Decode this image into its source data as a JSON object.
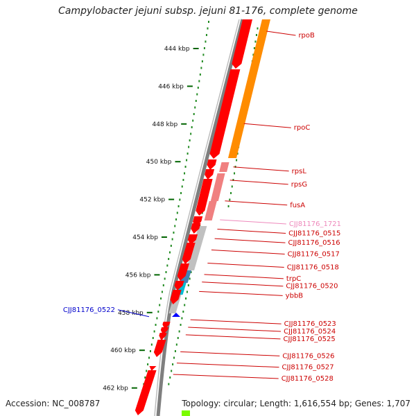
{
  "title": "Campylobacter jejuni subsp. jejuni 81-176, complete genome",
  "footer": {
    "accession": "Accession: NC_008787",
    "summary": "Topology: circular; Length: 1,616,554 bp; Genes: 1,707"
  },
  "colors": {
    "forward_gene": "#ff0000",
    "reverse_gene": "#ff0000",
    "orf_track": "#ff8c00",
    "rna_track": "#f08080",
    "other_gene": "#c0c0c0",
    "backbone": "#7f7f7f",
    "gc_dots": "#228b22",
    "tick": "#006400",
    "highlight_blue": "#4682b4",
    "highlight_cyan": "#00bcd4",
    "label_red": "#cc0000",
    "label_pink": "#ee88bb",
    "label_blue": "#0000cc",
    "lime": "#7cfc00"
  },
  "ticks": [
    {
      "label": "444 kbp",
      "kbp": 444
    },
    {
      "label": "446 kbp",
      "kbp": 446
    },
    {
      "label": "448 kbp",
      "kbp": 448
    },
    {
      "label": "450 kbp",
      "kbp": 450
    },
    {
      "label": "452 kbp",
      "kbp": 452
    },
    {
      "label": "454 kbp",
      "kbp": 454
    },
    {
      "label": "456 kbp",
      "kbp": 456
    },
    {
      "label": "458 kbp",
      "kbp": 458
    },
    {
      "label": "460 kbp",
      "kbp": 460
    },
    {
      "label": "462 kbp",
      "kbp": 462
    }
  ],
  "gene_labels": [
    {
      "text": "rpoB",
      "kbp": 443.3,
      "color": "label_red",
      "side": "right"
    },
    {
      "text": "rpoC",
      "kbp": 448.2,
      "color": "label_red",
      "side": "right"
    },
    {
      "text": "rpsL",
      "kbp": 450.5,
      "color": "label_red",
      "side": "right"
    },
    {
      "text": "rpsG",
      "kbp": 451.2,
      "color": "label_red",
      "side": "right"
    },
    {
      "text": "fusA",
      "kbp": 452.3,
      "color": "label_red",
      "side": "right"
    },
    {
      "text": "CJJ81176_1721",
      "kbp": 453.3,
      "color": "label_pink",
      "side": "right"
    },
    {
      "text": "CJJ81176_0515",
      "kbp": 453.8,
      "color": "label_red",
      "side": "right"
    },
    {
      "text": "CJJ81176_0516",
      "kbp": 454.3,
      "color": "label_red",
      "side": "right"
    },
    {
      "text": "CJJ81176_0517",
      "kbp": 454.9,
      "color": "label_red",
      "side": "right"
    },
    {
      "text": "CJJ81176_0518",
      "kbp": 455.6,
      "color": "label_red",
      "side": "right"
    },
    {
      "text": "trpC",
      "kbp": 456.2,
      "color": "label_red",
      "side": "right"
    },
    {
      "text": "CJJ81176_0520",
      "kbp": 456.6,
      "color": "label_red",
      "side": "right"
    },
    {
      "text": "ybbB",
      "kbp": 457.1,
      "color": "label_red",
      "side": "right"
    },
    {
      "text": "CJJ81176_0523",
      "kbp": 458.6,
      "color": "label_red",
      "side": "right"
    },
    {
      "text": "CJJ81176_0524",
      "kbp": 459.0,
      "color": "label_red",
      "side": "right"
    },
    {
      "text": "CJJ81176_0525",
      "kbp": 459.4,
      "color": "label_red",
      "side": "right"
    },
    {
      "text": "CJJ81176_0526",
      "kbp": 460.3,
      "color": "label_red",
      "side": "right"
    },
    {
      "text": "CJJ81176_0527",
      "kbp": 460.9,
      "color": "label_red",
      "side": "right"
    },
    {
      "text": "CJJ81176_0528",
      "kbp": 461.5,
      "color": "label_red",
      "side": "right"
    },
    {
      "text": "CJJ81176_0522",
      "kbp": 458.0,
      "color": "label_blue",
      "side": "left"
    }
  ]
}
